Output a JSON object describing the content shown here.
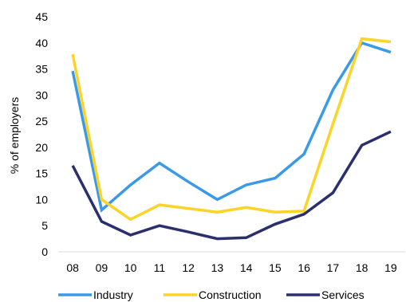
{
  "chart_data": {
    "type": "line",
    "title": "",
    "xlabel": "",
    "ylabel": "% of employers",
    "x": [
      "08",
      "09",
      "10",
      "11",
      "12",
      "13",
      "14",
      "15",
      "16",
      "17",
      "18",
      "19"
    ],
    "ylim": [
      0,
      45
    ],
    "yticks": [
      0,
      5,
      10,
      15,
      20,
      25,
      30,
      35,
      40,
      45
    ],
    "grid": false,
    "legend_position": "bottom",
    "series": [
      {
        "name": "Industry",
        "color": "#3a9ae8",
        "values": [
          34.6,
          8.0,
          12.8,
          17.0,
          13.4,
          10.0,
          12.8,
          14.1,
          18.7,
          31.0,
          40.0,
          38.2
        ]
      },
      {
        "name": "Construction",
        "color": "#fcd326",
        "values": [
          37.8,
          10.0,
          6.2,
          9.0,
          8.3,
          7.6,
          8.5,
          7.6,
          7.8,
          24.5,
          40.8,
          40.2
        ]
      },
      {
        "name": "Services",
        "color": "#2b2f6b",
        "values": [
          16.5,
          5.8,
          3.2,
          5.0,
          3.8,
          2.5,
          2.7,
          5.3,
          7.2,
          11.3,
          20.4,
          23.0
        ]
      }
    ]
  }
}
